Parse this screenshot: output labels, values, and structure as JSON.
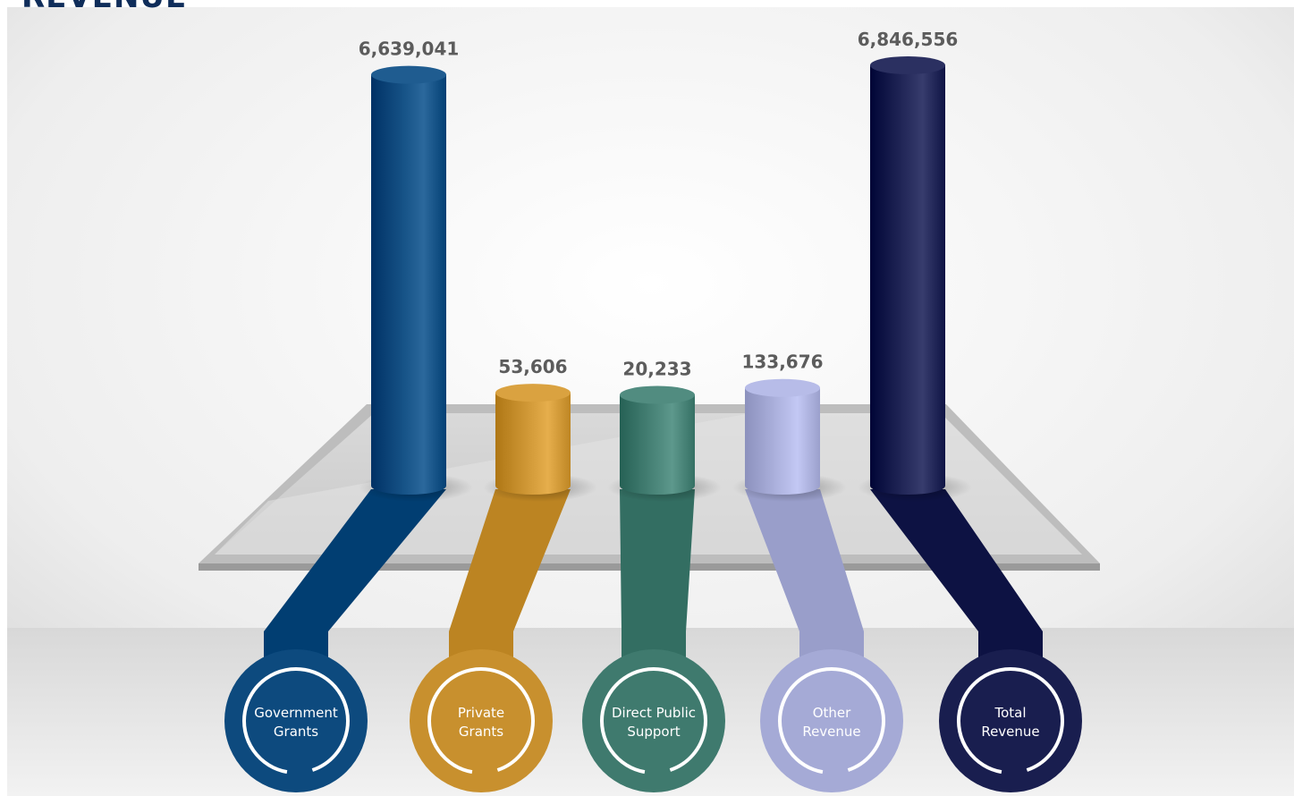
{
  "chart_data": {
    "type": "bar",
    "title": "REVENUE",
    "categories": [
      "Government Grants",
      "Private Grants",
      "Direct Public Support",
      "Other Revenue",
      "Total Revenue"
    ],
    "category_lines": [
      [
        "Government",
        "Grants"
      ],
      [
        "Private",
        "Grants"
      ],
      [
        "Direct Public",
        "Support"
      ],
      [
        "Other",
        "Revenue"
      ],
      [
        "Total",
        "Revenue"
      ]
    ],
    "values": [
      6639041,
      53606,
      20233,
      133676,
      6846556
    ],
    "value_labels": [
      "6,639,041",
      "53,606",
      "20,233",
      "133,676",
      "6,846,556"
    ],
    "colors": [
      "#0d4a7e",
      "#c8902e",
      "#3f7a6e",
      "#a5aad6",
      "#191e4f"
    ],
    "xlabel": "",
    "ylabel": "",
    "grid": false,
    "legend": "none"
  }
}
